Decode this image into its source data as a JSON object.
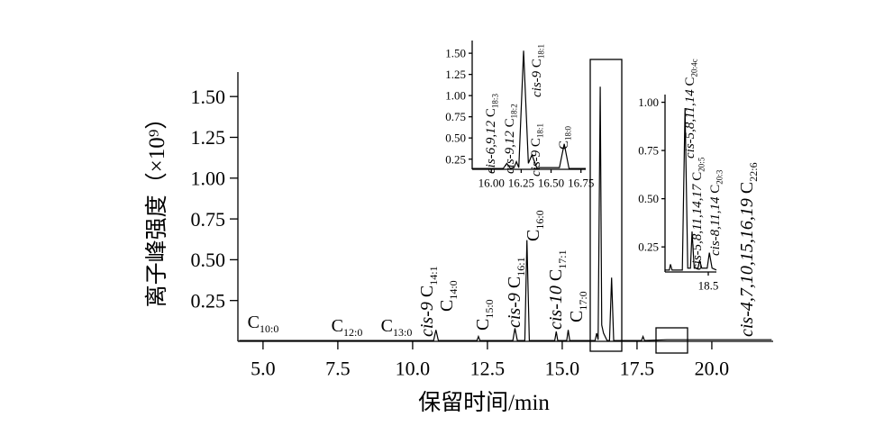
{
  "chart_data": [
    {
      "type": "line",
      "color": "#000000",
      "x_label": "保留时间/min",
      "y_label": "离子峰强度（×10⁹）",
      "xlim": [
        4.16,
        22.05
      ],
      "ylim": [
        0,
        1.65
      ],
      "xticks": [
        {
          "value": 5,
          "label": "5.0"
        },
        7.5,
        {
          "value": 10,
          "label": "10.0"
        },
        12.5,
        {
          "value": 15,
          "label": "15.0"
        },
        17.5,
        {
          "value": 20,
          "label": "20.0"
        }
      ],
      "yticks": [
        0.25,
        {
          "value": 0.5,
          "label": "0.50"
        },
        0.75,
        {
          "value": 1,
          "label": "1.00"
        },
        1.25,
        {
          "value": 1.5,
          "label": "1.50"
        }
      ],
      "x": [
        4.2,
        10.7,
        10.78,
        10.86,
        12.15,
        12.2,
        12.25,
        13.35,
        13.42,
        13.5,
        13.75,
        13.82,
        13.9,
        14.75,
        14.8,
        14.85,
        15.15,
        15.2,
        15.25,
        16.1,
        16.15,
        16.2,
        16.27,
        16.32,
        16.38,
        16.5,
        16.58,
        16.65,
        16.72,
        17.65,
        17.7,
        17.75,
        18.5,
        22.0
      ],
      "values": [
        0.005,
        0.005,
        0.07,
        0.005,
        0.005,
        0.03,
        0.005,
        0.005,
        0.08,
        0.005,
        0.005,
        0.62,
        0.005,
        0.005,
        0.06,
        0.005,
        0.005,
        0.07,
        0.005,
        0.005,
        0.05,
        0.01,
        1.56,
        0.1,
        0.05,
        0.005,
        0.005,
        0.39,
        0.005,
        0.005,
        0.03,
        0.005,
        0.01,
        0.01
      ],
      "annotations": [
        {
          "label": "C",
          "sub": "10:0"
        },
        {
          "label": "C",
          "sub": "12:0"
        },
        {
          "label": "C",
          "sub": "13:0"
        },
        {
          "prefix": "cis-9",
          "label": "C",
          "sub": "14:1"
        },
        {
          "label": "C",
          "sub": "14:0"
        },
        {
          "label": "C",
          "sub": "15:0"
        },
        {
          "prefix": "cis-9",
          "label": "C",
          "sub": "16:1"
        },
        {
          "label": "C",
          "sub": "16:0"
        },
        {
          "prefix": "cis-10",
          "label": "C",
          "sub": "17:1"
        },
        {
          "label": "C",
          "sub": "17:0"
        },
        {
          "prefix": "cis-4,7,10,15,16,19",
          "label": "C",
          "sub": "22:6"
        }
      ]
    },
    {
      "type": "line",
      "color": "#000000",
      "xlim": [
        15.84,
        16.79
      ],
      "ylim": [
        0.13,
        1.65
      ],
      "xticks": [
        {
          "value": 16,
          "label": "16.00"
        },
        16.25,
        {
          "value": 16.5,
          "label": "16.50"
        },
        16.75
      ],
      "yticks": [
        0.25,
        {
          "value": 0.5,
          "label": "0.50"
        },
        0.75,
        {
          "value": 1,
          "label": "1.00"
        },
        1.25,
        {
          "value": 1.5,
          "label": "1.50"
        }
      ],
      "x": [
        15.84,
        16.1,
        16.13,
        16.16,
        16.19,
        16.21,
        16.23,
        16.27,
        16.31,
        16.34,
        16.38,
        16.57,
        16.61,
        16.65,
        16.79
      ],
      "values": [
        0.14,
        0.14,
        0.2,
        0.14,
        0.15,
        0.22,
        0.15,
        1.53,
        0.2,
        0.3,
        0.15,
        0.15,
        0.43,
        0.14,
        0.14
      ],
      "annotations": [
        {
          "prefix": "cis-6,9,12",
          "label": "C",
          "sub": "18:3"
        },
        {
          "prefix": "cis-9,12",
          "label": "C",
          "sub": "18:2"
        },
        {
          "prefix": "cis-9",
          "label": "C",
          "sub": "18:1"
        },
        {
          "prefix": "cis-9",
          "label": "C",
          "sub": "18:1"
        },
        {
          "label": "C",
          "sub": "18:0"
        }
      ]
    },
    {
      "type": "line",
      "color": "#000000",
      "xlim": [
        17.7,
        18.65
      ],
      "ylim": [
        0.12,
        1.04
      ],
      "xticks": [
        18.5
      ],
      "yticks": [
        0.25,
        {
          "value": 0.5,
          "label": "0.50"
        },
        0.75,
        {
          "value": 1,
          "label": "1.00"
        }
      ],
      "x": [
        17.7,
        17.78,
        17.8,
        17.83,
        18.02,
        18.07,
        18.12,
        18.17,
        18.2,
        18.24,
        18.31,
        18.34,
        18.38,
        18.48,
        18.52,
        18.57,
        18.65
      ],
      "values": [
        0.13,
        0.13,
        0.16,
        0.13,
        0.13,
        0.97,
        0.14,
        0.14,
        0.33,
        0.14,
        0.14,
        0.18,
        0.14,
        0.14,
        0.22,
        0.14,
        0.13
      ],
      "annotations": [
        {
          "prefix": "cis-5,8,11,14",
          "label": "C",
          "sub": "20:4c"
        },
        {
          "prefix": "cis-5,8,11,14,17",
          "label": "C",
          "sub": "20:5"
        },
        {
          "prefix": "cis-8,11,14",
          "label": "C",
          "sub": "20:3"
        }
      ]
    }
  ]
}
